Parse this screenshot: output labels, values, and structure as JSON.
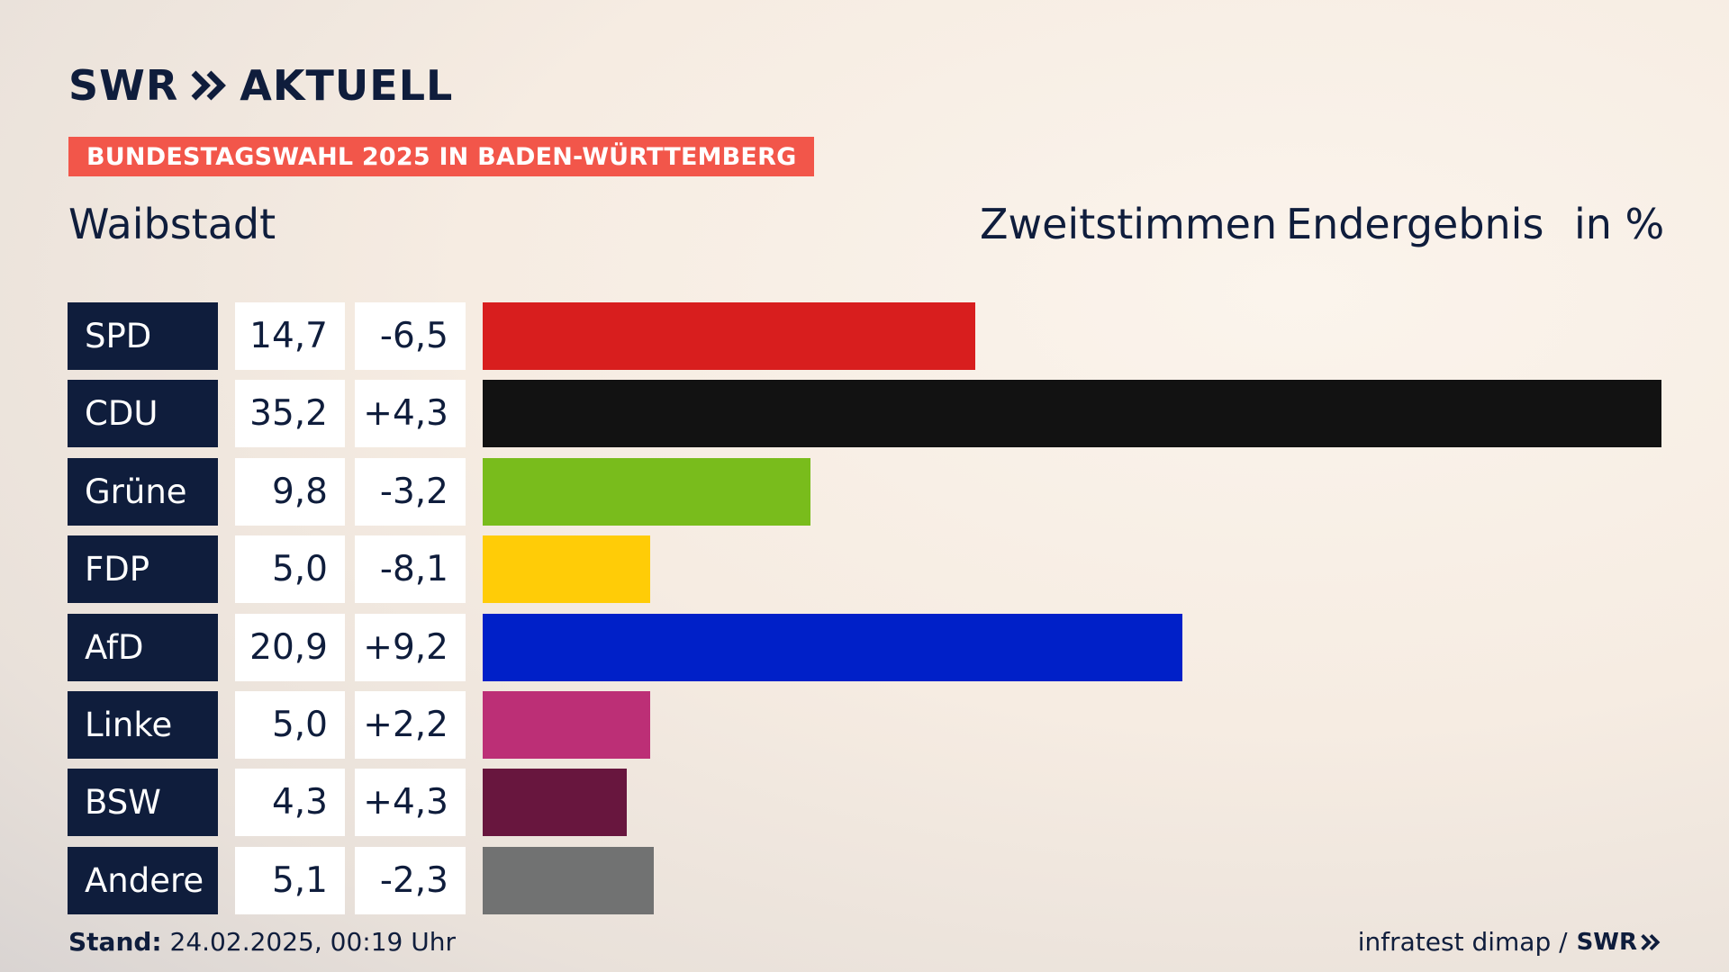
{
  "brand": {
    "logo_text_left": "SWR",
    "logo_text_right": "AKTUELL",
    "chevron_icon": "double-chevron-right-icon",
    "color": "#0f1d3c"
  },
  "banner": {
    "text": "BUNDESTAGSWAHL 2025 IN BADEN-WÜRTTEMBERG",
    "color": "#f2564a"
  },
  "location": "Waibstadt",
  "header": {
    "vote_type": "Zweitstimmen",
    "status": "Endergebnis",
    "unit": "in %"
  },
  "footer": {
    "stand_label": "Stand:",
    "stand_value": "24.02.2025, 00:19 Uhr",
    "source": "infratest dimap /",
    "source_logo": "SWR"
  },
  "chart_data": {
    "type": "bar",
    "orientation": "horizontal",
    "xlim": [
      0,
      35.2
    ],
    "categories": [
      "SPD",
      "CDU",
      "Grüne",
      "FDP",
      "AfD",
      "Linke",
      "BSW",
      "Andere"
    ],
    "values": [
      14.7,
      35.2,
      9.8,
      5.0,
      20.9,
      5.0,
      4.3,
      5.1
    ],
    "values_label": [
      "14,7",
      "35,2",
      "9,8",
      "5,0",
      "20,9",
      "5,0",
      "4,3",
      "5,1"
    ],
    "diffs_label": [
      "-6,5",
      "+4,3",
      "-3,2",
      "-8,1",
      "+9,2",
      "+2,2",
      "+4,3",
      "-2,3"
    ],
    "colors": [
      "#d81e1e",
      "#121212",
      "#79bc1c",
      "#ffcc07",
      "#0020c8",
      "#bc2f76",
      "#68163e",
      "#717272"
    ]
  }
}
